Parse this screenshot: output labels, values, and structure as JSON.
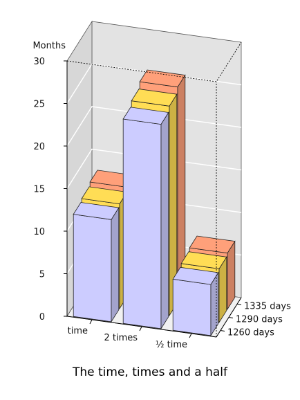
{
  "chart_data": {
    "type": "bar",
    "title": "The time, times and a half",
    "ylabel": "Months",
    "ylim": [
      0,
      30
    ],
    "yticks": [
      0,
      5,
      10,
      15,
      20,
      25,
      30
    ],
    "categories": [
      "time",
      "2 times",
      "½ time"
    ],
    "series": [
      {
        "name": "1260 days",
        "color": "#ccccff",
        "values": [
          12,
          24,
          6
        ]
      },
      {
        "name": "1290 days",
        "color": "#ffdd55",
        "values": [
          12.3,
          24.6,
          6.3
        ]
      },
      {
        "name": "1335 days",
        "color": "#ffa07a",
        "values": [
          12.7,
          25.3,
          6.6
        ]
      }
    ],
    "grid": true
  }
}
